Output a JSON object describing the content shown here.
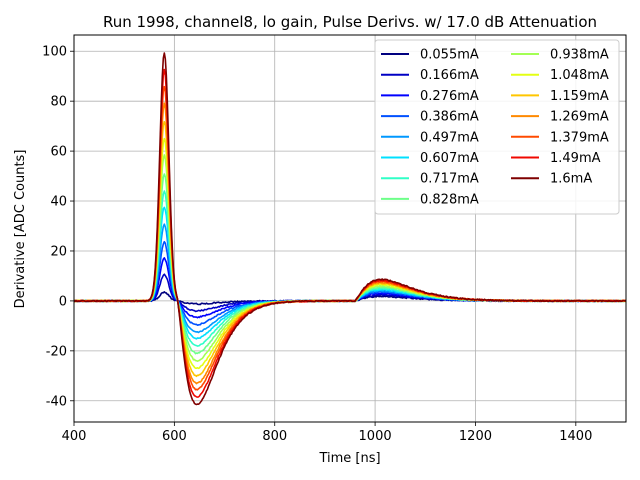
{
  "chart_data": {
    "type": "line",
    "title": "Run 1998, channel8, lo gain, Pulse Derivs. w/ 17.0 dB Attenuation",
    "xlabel": "Time [ns]",
    "ylabel": "Derivative [ADC Counts]",
    "xlim": [
      400,
      1500
    ],
    "ylim": [
      -48.5,
      106.5
    ],
    "xticks": [
      400,
      600,
      800,
      1000,
      1200,
      1400
    ],
    "yticks": [
      -40,
      -20,
      0,
      20,
      40,
      60,
      80,
      100
    ],
    "grid": true,
    "legend_position": "top-right",
    "legend_columns": 2,
    "series": [
      {
        "name": "0.055mA",
        "color": "#00007f",
        "peak": 3.5,
        "trough": -1.2,
        "bump": 1.8
      },
      {
        "name": "0.166mA",
        "color": "#0000c4",
        "peak": 10.5,
        "trough": -4.0,
        "bump": 2.4
      },
      {
        "name": "0.276mA",
        "color": "#0000ff",
        "peak": 17.0,
        "trough": -6.5,
        "bump": 3.0
      },
      {
        "name": "0.386mA",
        "color": "#0050ff",
        "peak": 23.5,
        "trough": -9.5,
        "bump": 3.5
      },
      {
        "name": "0.497mA",
        "color": "#0098ff",
        "peak": 30.5,
        "trough": -12.5,
        "bump": 4.0
      },
      {
        "name": "0.607mA",
        "color": "#00e0ff",
        "peak": 37.5,
        "trough": -15.0,
        "bump": 4.5
      },
      {
        "name": "0.717mA",
        "color": "#30ffc7",
        "peak": 44.0,
        "trough": -18.0,
        "bump": 5.0
      },
      {
        "name": "0.828mA",
        "color": "#6eff89",
        "peak": 51.0,
        "trough": -21.0,
        "bump": 5.5
      },
      {
        "name": "0.938mA",
        "color": "#a3ff54",
        "peak": 58.5,
        "trough": -24.0,
        "bump": 6.0
      },
      {
        "name": "1.048mA",
        "color": "#e4ff13",
        "peak": 65.0,
        "trough": -27.0,
        "bump": 6.5
      },
      {
        "name": "1.159mA",
        "color": "#ffc600",
        "peak": 72.0,
        "trough": -30.0,
        "bump": 7.0
      },
      {
        "name": "1.269mA",
        "color": "#ff8900",
        "peak": 79.0,
        "trough": -33.0,
        "bump": 7.4
      },
      {
        "name": "1.379mA",
        "color": "#ff4a00",
        "peak": 86.0,
        "trough": -35.5,
        "bump": 7.8
      },
      {
        "name": "1.49mA",
        "color": "#f00800",
        "peak": 92.5,
        "trough": -38.5,
        "bump": 8.2
      },
      {
        "name": "1.6mA",
        "color": "#7f0000",
        "peak": 99.5,
        "trough": -41.5,
        "bump": 8.6
      }
    ]
  }
}
